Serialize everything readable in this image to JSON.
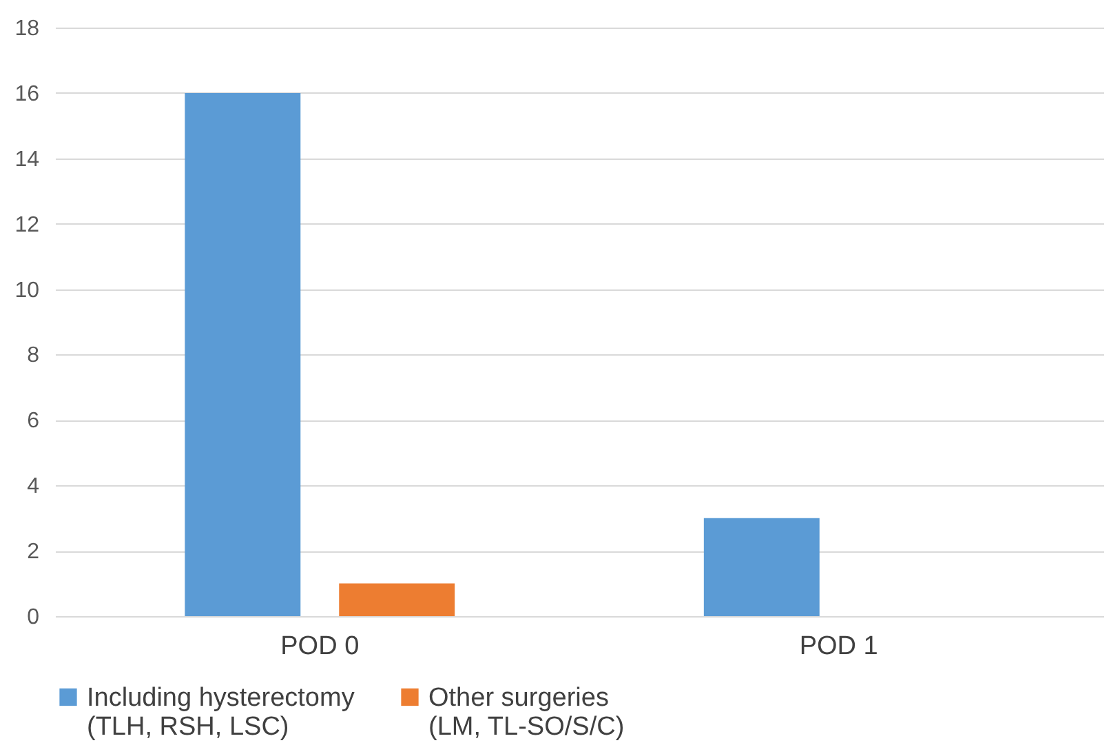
{
  "chart_data": {
    "type": "bar",
    "categories": [
      "POD 0",
      "POD 1"
    ],
    "series": [
      {
        "name": "Including hysterectomy (TLH, RSH, LSC)",
        "color": "#5b9bd5",
        "values": [
          16,
          3
        ]
      },
      {
        "name": "Other surgeries (LM, TL-SO/S/C)",
        "color": "#ed7d31",
        "values": [
          1,
          0
        ]
      }
    ],
    "ylim": [
      0,
      18
    ],
    "yticks": [
      0,
      2,
      4,
      6,
      8,
      10,
      12,
      14,
      16,
      18
    ],
    "grid": "y",
    "legend": "bottom"
  }
}
